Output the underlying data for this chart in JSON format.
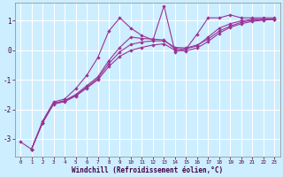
{
  "xlabel": "Windchill (Refroidissement éolien,°C)",
  "background_color": "#cceeff",
  "grid_color": "#ffffff",
  "line_color": "#993399",
  "xlim": [
    -0.5,
    23.5
  ],
  "ylim": [
    -3.6,
    1.6
  ],
  "yticks": [
    -3,
    -2,
    -1,
    0,
    1
  ],
  "xticks": [
    0,
    1,
    2,
    3,
    4,
    5,
    6,
    7,
    8,
    9,
    10,
    11,
    12,
    13,
    14,
    15,
    16,
    17,
    18,
    19,
    20,
    21,
    22,
    23
  ],
  "xticklabels": [
    "0",
    "1",
    "2",
    "3",
    "4",
    "5",
    "6",
    "7",
    "8",
    "9",
    "10",
    "11",
    "12",
    "13",
    "14",
    "15",
    "16",
    "17",
    "18",
    "19",
    "20",
    "21",
    "22",
    "23"
  ],
  "series1_x": [
    0,
    1,
    2,
    3,
    4,
    5,
    6,
    7,
    8,
    9,
    10,
    11,
    12,
    13,
    14,
    15,
    16,
    17,
    18,
    19,
    20,
    21,
    22,
    23
  ],
  "series1_y": [
    -3.1,
    -3.35,
    -2.4,
    -1.75,
    -1.65,
    -1.3,
    -0.85,
    -0.25,
    0.65,
    1.1,
    0.75,
    0.5,
    0.35,
    1.5,
    -0.05,
    0.05,
    0.55,
    1.1,
    1.1,
    1.2,
    1.1,
    1.1,
    1.1,
    1.1
  ],
  "series2_x": [
    1,
    2,
    3,
    4,
    5,
    6,
    7,
    8,
    9,
    10,
    11,
    12,
    13,
    14,
    15,
    16,
    17,
    18,
    19,
    20,
    21,
    22,
    23
  ],
  "series2_y": [
    -3.35,
    -2.45,
    -1.8,
    -1.7,
    -1.5,
    -1.2,
    -0.9,
    -0.35,
    0.1,
    0.45,
    0.4,
    0.38,
    0.35,
    0.05,
    0.05,
    0.15,
    0.45,
    0.75,
    0.9,
    1.0,
    1.05,
    1.05,
    1.05
  ],
  "series3_x": [
    1,
    2,
    3,
    4,
    5,
    6,
    7,
    8,
    9,
    10,
    11,
    12,
    13,
    14,
    15,
    16,
    17,
    18,
    19,
    20,
    21,
    22,
    23
  ],
  "series3_y": [
    -3.35,
    -2.45,
    -1.8,
    -1.72,
    -1.52,
    -1.25,
    -0.95,
    -0.45,
    -0.05,
    0.2,
    0.28,
    0.32,
    0.32,
    0.1,
    0.08,
    0.18,
    0.38,
    0.65,
    0.82,
    0.95,
    1.02,
    1.05,
    1.05
  ],
  "series4_x": [
    1,
    2,
    3,
    4,
    5,
    6,
    7,
    8,
    9,
    10,
    11,
    12,
    13,
    14,
    15,
    16,
    17,
    18,
    19,
    20,
    21,
    22,
    23
  ],
  "series4_y": [
    -3.35,
    -2.45,
    -1.82,
    -1.74,
    -1.55,
    -1.28,
    -1.0,
    -0.55,
    -0.2,
    0.0,
    0.1,
    0.18,
    0.22,
    0.0,
    -0.02,
    0.08,
    0.3,
    0.58,
    0.78,
    0.9,
    0.98,
    1.02,
    1.05
  ]
}
